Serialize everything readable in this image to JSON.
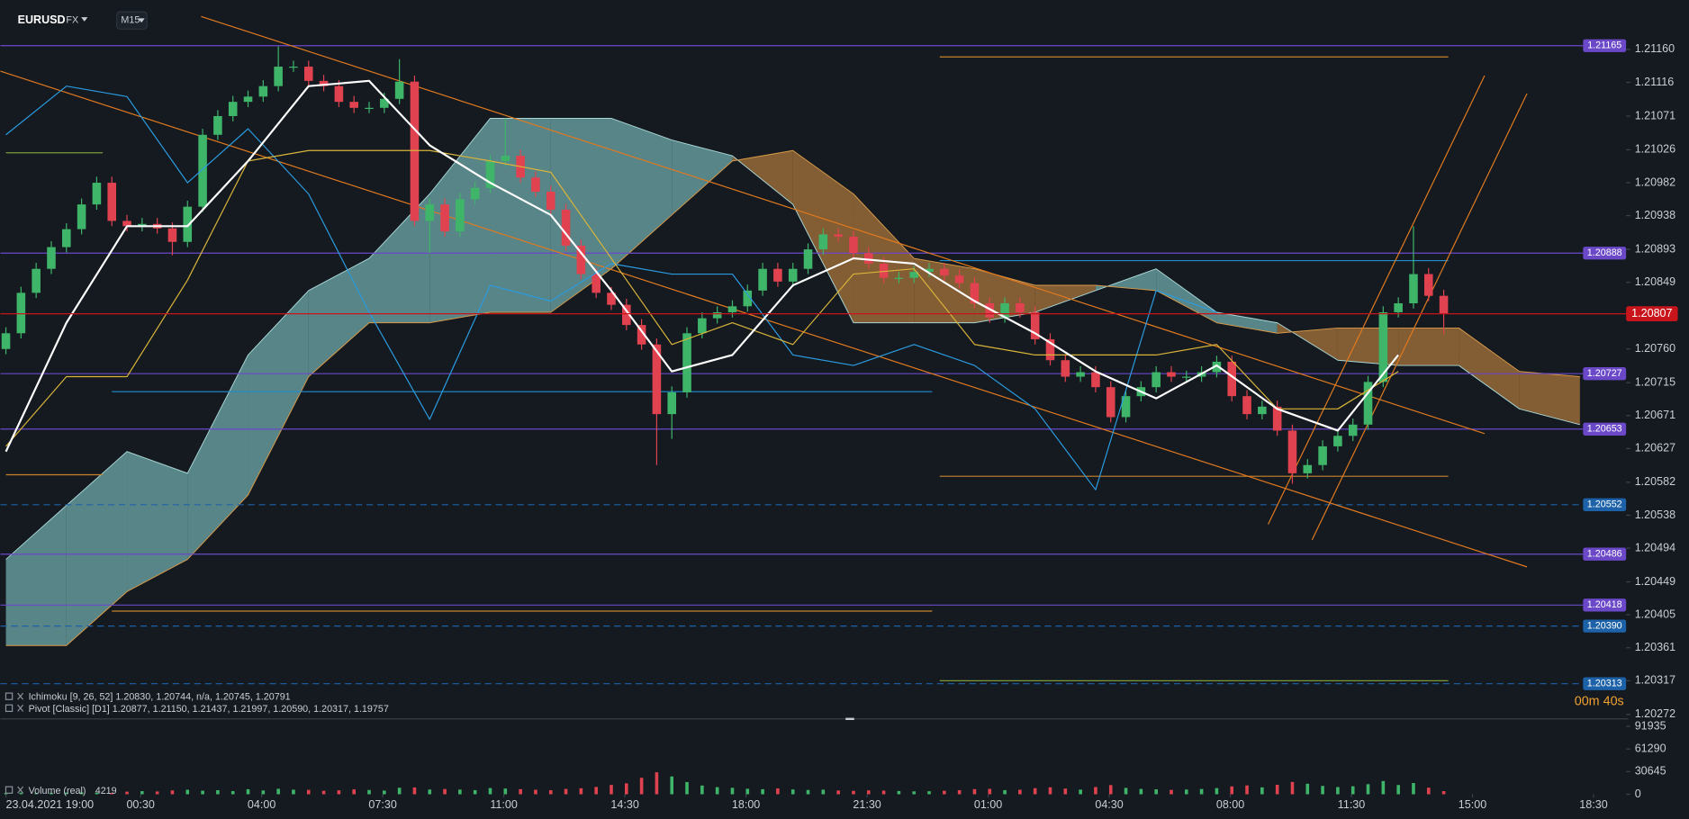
{
  "chart_data": [
    {
      "type": "candlestick",
      "symbol": "EURUSD",
      "market": "FX",
      "timeframe": "M15",
      "ichimoku_legend": "Ichimoku  [9, 26, 52]  1.20830, 1.20744, n/a, 1.20745, 1.20791",
      "pivot_legend": "Pivot  [Classic]  [D1]  1.20877, 1.21150, 1.21437, 1.21997, 1.20590, 1.20317, 1.19757",
      "timer": "00m 40s",
      "up_color": "#3fb56a",
      "down_color": "#e0434f",
      "open": [
        1.2076,
        1.20781,
        1.20835,
        1.20867,
        1.20896,
        1.2092,
        1.20953,
        1.20982,
        1.20931,
        1.20924,
        1.20927,
        1.20921,
        1.20903,
        1.2095,
        1.21046,
        1.21071,
        1.2109,
        1.21097,
        1.21111,
        1.21137,
        1.21137,
        1.21118,
        1.21111,
        1.2109,
        1.21082,
        1.21082,
        1.21094,
        1.21117,
        1.20931,
        1.20953,
        1.20917,
        1.2096,
        1.20975,
        1.21011,
        1.21018,
        1.20989,
        1.2097,
        1.20946,
        1.20898,
        1.2086,
        1.20835,
        1.20819,
        1.20792,
        1.20766,
        1.20673,
        1.20702,
        1.20781,
        1.20801,
        1.20809,
        1.20817,
        1.20838,
        1.20867,
        1.2085,
        1.20867,
        1.20893,
        1.20913,
        1.2091,
        1.20888,
        1.20874,
        1.20855,
        1.20855,
        1.20863,
        1.20867,
        1.20858,
        1.20848,
        1.20821,
        1.20802,
        1.20821,
        1.20809,
        1.20773,
        1.20745,
        1.20723,
        1.20729,
        1.20709,
        1.20669,
        1.20697,
        1.20709,
        1.20729,
        1.20723,
        1.20723,
        1.20729,
        1.20743,
        1.20697,
        1.20673,
        1.20683,
        1.20651,
        1.20594,
        1.20605,
        1.2063,
        1.20644,
        1.20659,
        1.20716,
        1.20809,
        1.20821,
        1.2086,
        1.20831
      ],
      "high": [
        1.20789,
        1.20843,
        1.20875,
        1.20904,
        1.20928,
        1.20961,
        1.2099,
        1.2099,
        1.20939,
        1.20935,
        1.20935,
        1.20929,
        1.20958,
        1.21054,
        1.21079,
        1.21098,
        1.21105,
        1.21119,
        1.21164,
        1.21145,
        1.21145,
        1.21126,
        1.21119,
        1.21098,
        1.2109,
        1.21102,
        1.21147,
        1.21125,
        1.20961,
        1.20961,
        1.20968,
        1.20983,
        1.21019,
        1.21068,
        1.21026,
        1.20997,
        1.20978,
        1.20954,
        1.20906,
        1.20868,
        1.20843,
        1.20827,
        1.208,
        1.20774,
        1.2071,
        1.20789,
        1.20809,
        1.20817,
        1.20825,
        1.20846,
        1.20875,
        1.20875,
        1.20875,
        1.20901,
        1.20921,
        1.20921,
        1.20918,
        1.20896,
        1.20882,
        1.20863,
        1.20871,
        1.20875,
        1.20875,
        1.20866,
        1.20856,
        1.20829,
        1.20829,
        1.20829,
        1.20817,
        1.20781,
        1.20753,
        1.20737,
        1.20737,
        1.20717,
        1.20705,
        1.20717,
        1.20737,
        1.20737,
        1.20731,
        1.20737,
        1.20751,
        1.20751,
        1.20705,
        1.20691,
        1.20691,
        1.20659,
        1.20613,
        1.20638,
        1.20652,
        1.20667,
        1.20724,
        1.20817,
        1.20829,
        1.20924,
        1.20868,
        1.20839
      ],
      "low": [
        1.20753,
        1.20774,
        1.20828,
        1.2086,
        1.20889,
        1.20913,
        1.20946,
        1.20924,
        1.20917,
        1.20917,
        1.20914,
        1.20885,
        1.20896,
        1.20943,
        1.21039,
        1.21064,
        1.21083,
        1.2109,
        1.21104,
        1.2113,
        1.21111,
        1.21104,
        1.21083,
        1.21075,
        1.21075,
        1.21075,
        1.21087,
        1.20924,
        1.20888,
        1.2091,
        1.2091,
        1.20953,
        1.20968,
        1.21004,
        1.20982,
        1.20963,
        1.20939,
        1.20891,
        1.20853,
        1.20828,
        1.20812,
        1.20785,
        1.20759,
        1.20605,
        1.2064,
        1.20695,
        1.20774,
        1.20794,
        1.20802,
        1.2081,
        1.20831,
        1.20843,
        1.20843,
        1.2086,
        1.20886,
        1.20903,
        1.20881,
        1.20867,
        1.20848,
        1.20848,
        1.20848,
        1.20856,
        1.20851,
        1.20841,
        1.20814,
        1.20795,
        1.20795,
        1.20802,
        1.20766,
        1.20738,
        1.20716,
        1.20716,
        1.20702,
        1.20662,
        1.20662,
        1.2069,
        1.20702,
        1.20716,
        1.20716,
        1.20716,
        1.20722,
        1.2069,
        1.20666,
        1.20666,
        1.20644,
        1.2058,
        1.20587,
        1.20598,
        1.20623,
        1.20637,
        1.20652,
        1.20709,
        1.20802,
        1.20814,
        1.20824,
        1.2078
      ],
      "close": [
        1.20781,
        1.20835,
        1.20867,
        1.20896,
        1.2092,
        1.20953,
        1.20982,
        1.20931,
        1.20924,
        1.20927,
        1.20921,
        1.20903,
        1.2095,
        1.21046,
        1.21071,
        1.2109,
        1.21097,
        1.21111,
        1.21137,
        1.21137,
        1.21118,
        1.21111,
        1.2109,
        1.21082,
        1.21082,
        1.21094,
        1.21117,
        1.20931,
        1.20953,
        1.20917,
        1.2096,
        1.20975,
        1.21011,
        1.21018,
        1.20989,
        1.2097,
        1.20946,
        1.20898,
        1.2086,
        1.20835,
        1.20819,
        1.20792,
        1.20766,
        1.20673,
        1.20702,
        1.20781,
        1.20801,
        1.20809,
        1.20817,
        1.20838,
        1.20867,
        1.2085,
        1.20867,
        1.20893,
        1.20913,
        1.2091,
        1.20888,
        1.20874,
        1.20855,
        1.20855,
        1.20863,
        1.20867,
        1.20858,
        1.20848,
        1.20821,
        1.20802,
        1.20821,
        1.20809,
        1.20773,
        1.20745,
        1.20723,
        1.20729,
        1.20709,
        1.20669,
        1.20697,
        1.20709,
        1.20729,
        1.20723,
        1.20723,
        1.20729,
        1.20743,
        1.20697,
        1.20673,
        1.20683,
        1.20651,
        1.20594,
        1.20605,
        1.2063,
        1.20644,
        1.20659,
        1.20716,
        1.20809,
        1.20821,
        1.2086,
        1.20831,
        1.20807
      ],
      "xlim": [
        -0.36,
        107.05
      ],
      "xticks": [
        {
          "value": 0,
          "label": "23.04.2021  19:00"
        },
        {
          "value": 8.9,
          "label": "00:30"
        },
        {
          "value": 16.9,
          "label": "04:00"
        },
        {
          "value": 24.9,
          "label": "07:30"
        },
        {
          "value": 32.9,
          "label": "11:00"
        },
        {
          "value": 40.9,
          "label": "14:30"
        },
        {
          "value": 48.9,
          "label": "18:00"
        },
        {
          "value": 56.9,
          "label": "21:30"
        },
        {
          "value": 64.9,
          "label": "01:00"
        },
        {
          "value": 72.9,
          "label": "04:30"
        },
        {
          "value": 80.9,
          "label": "08:00"
        },
        {
          "value": 88.9,
          "label": "11:30"
        },
        {
          "value": 96.9,
          "label": "15:00"
        },
        {
          "value": 104.9,
          "label": "18:30"
        }
      ],
      "ylim": [
        1.20266,
        1.21226
      ],
      "yticks": [
        {
          "value": 1.2116,
          "label": "1.21160"
        },
        {
          "value": 1.21116,
          "label": "1.21116"
        },
        {
          "value": 1.21071,
          "label": "1.21071"
        },
        {
          "value": 1.21026,
          "label": "1.21026"
        },
        {
          "value": 1.20982,
          "label": "1.20982"
        },
        {
          "value": 1.20938,
          "label": "1.20938"
        },
        {
          "value": 1.20893,
          "label": "1.20893"
        },
        {
          "value": 1.20849,
          "label": "1.20849"
        },
        {
          "value": 1.2076,
          "label": "1.20760"
        },
        {
          "value": 1.20715,
          "label": "1.20715"
        },
        {
          "value": 1.20671,
          "label": "1.20671"
        },
        {
          "value": 1.20627,
          "label": "1.20627"
        },
        {
          "value": 1.20582,
          "label": "1.20582"
        },
        {
          "value": 1.20538,
          "label": "1.20538"
        },
        {
          "value": 1.20494,
          "label": "1.20494"
        },
        {
          "value": 1.20449,
          "label": "1.20449"
        },
        {
          "value": 1.20405,
          "label": "1.20405"
        },
        {
          "value": 1.20361,
          "label": "1.20361"
        },
        {
          "value": 1.20317,
          "label": "1.20317"
        },
        {
          "value": 1.20272,
          "label": "1.20272"
        }
      ],
      "current_price": 1.20807,
      "current_color": "#c8151b",
      "levels": [
        {
          "value": 1.21165,
          "label": "1.21165",
          "color": "#6a48c8",
          "dashed": false
        },
        {
          "value": 1.20888,
          "label": "1.20888",
          "color": "#6a48c8",
          "dashed": false
        },
        {
          "value": 1.20727,
          "label": "1.20727",
          "color": "#6a48c8",
          "dashed": false
        },
        {
          "value": 1.20653,
          "label": "1.20653",
          "color": "#6a48c8",
          "dashed": false
        },
        {
          "value": 1.20552,
          "label": "1.20552",
          "color": "#1d62a8",
          "dashed": true
        },
        {
          "value": 1.20486,
          "label": "1.20486",
          "color": "#6a48c8",
          "dashed": false
        },
        {
          "value": 1.20418,
          "label": "1.20418",
          "color": "#6a48c8",
          "dashed": false
        },
        {
          "value": 1.2039,
          "label": "1.20390",
          "color": "#1d62a8",
          "dashed": true
        },
        {
          "value": 1.20313,
          "label": "1.20313",
          "color": "#1d62a8",
          "dashed": true
        }
      ],
      "segments": [
        {
          "value": 1.2115,
          "x": [
            61.7,
            95.3
          ],
          "color": "#c8832a"
        },
        {
          "value": 1.2059,
          "x": [
            61.7,
            95.3
          ],
          "color": "#c8832a"
        },
        {
          "value": 1.20317,
          "x": [
            61.7,
            95.3
          ],
          "color": "#7a9a3a"
        },
        {
          "value": 1.20878,
          "x": [
            61.7,
            95.3
          ],
          "color": "#1f8fd0"
        },
        {
          "value": 1.2041,
          "x": [
            7.0,
            61.2
          ],
          "color": "#c8832a"
        },
        {
          "value": 1.20703,
          "x": [
            7.0,
            61.2
          ],
          "color": "#1f8fd0"
        },
        {
          "value": 1.21022,
          "x": [
            0,
            6.4
          ],
          "color": "#7a9a3a"
        },
        {
          "value": 1.20592,
          "x": [
            0,
            6.4
          ],
          "color": "#c8832a"
        }
      ],
      "trendlines": [
        {
          "x": [
            12.9,
            97.7
          ],
          "y": [
            1.21204,
            1.20647
          ],
          "color": "#e07a1f"
        },
        {
          "x": [
            -0.36,
            100.5
          ],
          "y": [
            1.21131,
            1.20469
          ],
          "color": "#e07a1f"
        },
        {
          "x": [
            83.4,
            97.7
          ],
          "y": [
            1.20526,
            1.21125
          ],
          "color": "#e07a1f"
        },
        {
          "x": [
            86.3,
            100.5
          ],
          "y": [
            1.20505,
            1.21101
          ],
          "color": "#e07a1f"
        }
      ],
      "ichimoku": {
        "x": [
          0,
          4,
          8,
          12,
          16,
          20,
          24,
          28,
          32,
          36,
          40,
          44,
          48,
          52,
          56,
          60,
          64,
          68,
          72,
          76,
          80,
          84,
          88,
          92,
          96,
          100,
          104
        ],
        "tenkan": [
          1.20623,
          1.20795,
          1.20924,
          1.20924,
          1.21011,
          1.21111,
          1.21118,
          1.21032,
          1.20982,
          1.20939,
          1.20838,
          1.2073,
          1.20752,
          1.20845,
          1.20881,
          1.20874,
          1.20824,
          1.20781,
          1.2073,
          1.20694,
          1.20738,
          1.2068,
          1.20651,
          1.20752,
          null,
          null,
          null
        ],
        "kijun": [
          1.2063,
          1.20723,
          1.20723,
          1.20852,
          1.21011,
          1.21025,
          1.21025,
          1.21025,
          1.21011,
          1.20996,
          1.20881,
          1.20766,
          1.20795,
          1.20766,
          1.2086,
          1.20867,
          1.20766,
          1.20752,
          1.20752,
          1.20752,
          1.20766,
          1.2068,
          1.2068,
          1.2073,
          null,
          null,
          null
        ],
        "chikou": [
          1.21046,
          1.21111,
          1.21097,
          1.20982,
          1.21054,
          1.20967,
          1.20809,
          1.20666,
          1.20845,
          1.20824,
          1.20874,
          1.2086,
          1.2086,
          1.20752,
          1.20738,
          1.20766,
          1.20738,
          1.2068,
          1.20572,
          1.20838,
          1.20809,
          null,
          null,
          null,
          null,
          null,
          null
        ],
        "span_a": [
          1.20479,
          1.20551,
          1.20623,
          1.20594,
          1.20752,
          1.20838,
          1.20881,
          1.20967,
          1.21068,
          1.21068,
          1.21068,
          1.21039,
          1.21018,
          1.20953,
          1.20795,
          1.20795,
          1.20795,
          1.20809,
          1.20838,
          1.20867,
          1.20809,
          1.20795,
          1.20745,
          1.20738,
          1.20738,
          1.2068,
          1.20659
        ],
        "span_b": [
          1.20364,
          1.20364,
          1.20436,
          1.20479,
          1.20565,
          1.20723,
          1.20795,
          1.20795,
          1.20809,
          1.20809,
          1.20867,
          1.20939,
          1.21011,
          1.21025,
          1.20967,
          1.20881,
          1.20867,
          1.20845,
          1.20845,
          1.20838,
          1.20795,
          1.20781,
          1.20788,
          1.20788,
          1.20788,
          1.2073,
          1.20723
        ],
        "tenkan_color": "#ffffff",
        "kijun_color": "#d9b43a",
        "chikou_color": "#2b9be0",
        "bull_fill": "#6fa9a9",
        "bear_fill": "#a8743a"
      }
    },
    {
      "type": "bar",
      "title": "Volume (real)",
      "values": [
        1800,
        2100,
        1500,
        1900,
        2200,
        2500,
        2000,
        1800,
        3500,
        4200,
        3800,
        5200,
        6100,
        4800,
        5500,
        4300,
        6800,
        5100,
        7400,
        6200,
        5900,
        4700,
        5300,
        6600,
        5800,
        4900,
        8800,
        9200,
        6400,
        7100,
        6300,
        5600,
        8400,
        7700,
        6900,
        6100,
        5400,
        7200,
        8100,
        9900,
        12600,
        14800,
        22300,
        29700,
        24100,
        16500,
        11800,
        9600,
        8700,
        7400,
        6800,
        7900,
        6500,
        5800,
        6200,
        5100,
        4600,
        5300,
        4900,
        4400,
        3900,
        4100,
        4700,
        5500,
        6900,
        7300,
        5600,
        6100,
        8200,
        9400,
        7700,
        6300,
        9800,
        12400,
        8600,
        7200,
        6700,
        5900,
        6400,
        7100,
        8300,
        10600,
        11900,
        9300,
        12800,
        16700,
        14200,
        11300,
        9700,
        10800,
        13600,
        17900,
        12500,
        15200,
        8900,
        4219
      ],
      "ylim": [
        0,
        102000
      ],
      "yticks": [
        0,
        30645,
        61290,
        91935
      ]
    }
  ]
}
